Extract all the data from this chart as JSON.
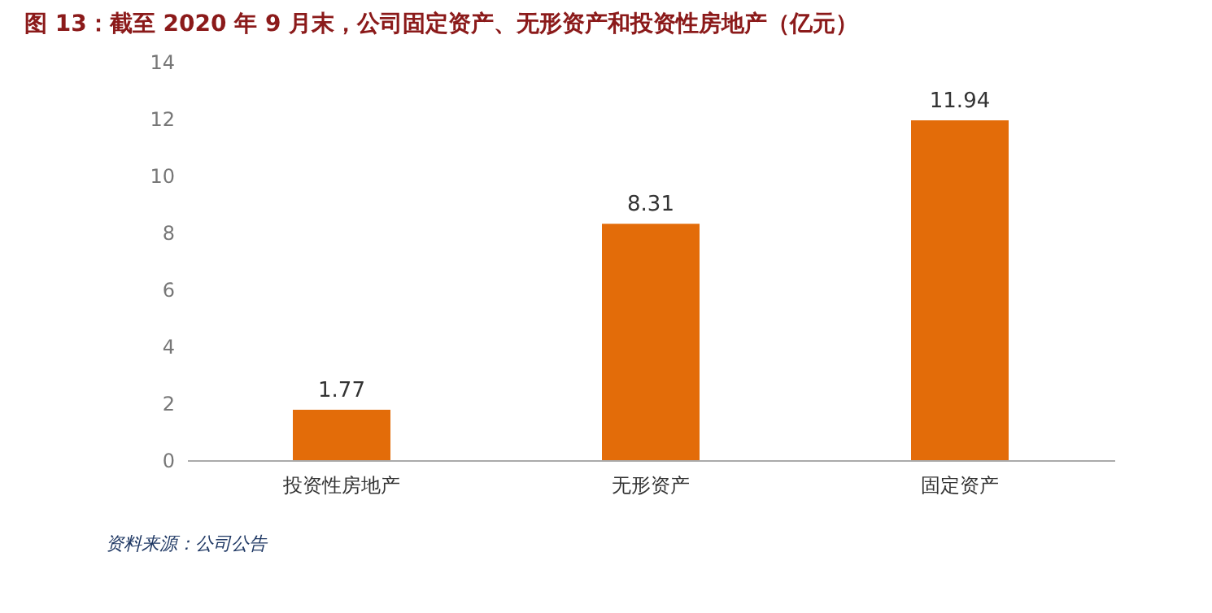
{
  "chart_data": {
    "type": "bar",
    "title": "图 13：截至 2020 年 9 月末，公司固定资产、无形资产和投资性房地产（亿元）",
    "categories": [
      "投资性房地产",
      "无形资产",
      "固定资产"
    ],
    "values": [
      1.77,
      8.31,
      11.94
    ],
    "color": "#e36c09",
    "ylim": [
      0,
      14
    ],
    "yticks": [
      0,
      2,
      4,
      6,
      8,
      10,
      12,
      14
    ],
    "grid": false,
    "data_labels": true,
    "annotations": [
      "资料来源：公司公告"
    ]
  }
}
